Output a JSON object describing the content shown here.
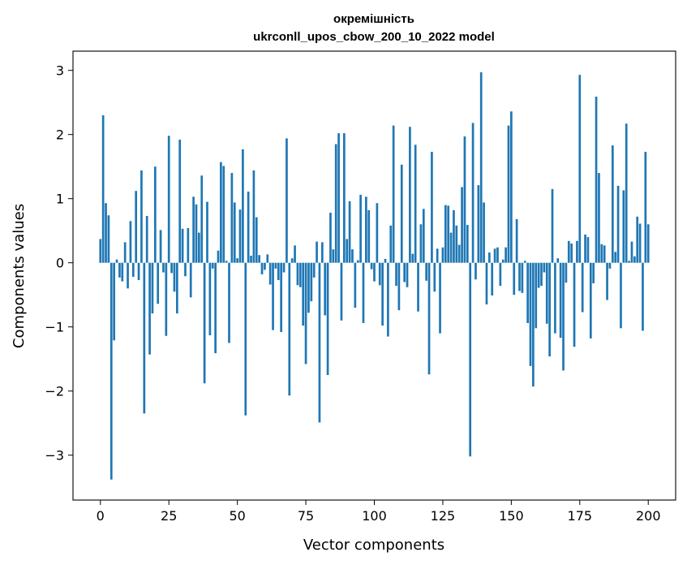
{
  "chart_data": {
    "type": "bar",
    "title_line1": "окремішність",
    "title_line2": "ukrconll_upos_cbow_200_10_2022 model",
    "xlabel": "Vector components",
    "ylabel": "Components values",
    "xlim": [
      -10,
      210
    ],
    "ylim": [
      -3.7,
      3.3
    ],
    "xticks": [
      0,
      25,
      50,
      75,
      100,
      125,
      150,
      175,
      200
    ],
    "yticks": [
      -3,
      -2,
      -1,
      0,
      1,
      2,
      3
    ],
    "ytick_labels": [
      "−3",
      "−2",
      "−1",
      "0",
      "1",
      "2",
      "3"
    ],
    "bar_color": "#1f77b4",
    "values": [
      0.37,
      2.3,
      0.93,
      0.74,
      -3.38,
      -1.21,
      0.05,
      -0.23,
      -0.29,
      0.32,
      -0.4,
      0.65,
      -0.22,
      1.12,
      -0.27,
      1.44,
      -2.35,
      0.73,
      -1.43,
      -0.79,
      1.5,
      -0.64,
      0.51,
      -0.15,
      -1.14,
      1.98,
      -0.16,
      -0.45,
      -0.79,
      1.92,
      0.53,
      -0.21,
      0.54,
      -0.54,
      1.03,
      0.91,
      0.47,
      1.36,
      -1.88,
      0.95,
      -1.13,
      -0.09,
      -1.41,
      0.19,
      1.57,
      1.51,
      0.03,
      -1.25,
      1.4,
      0.94,
      0.07,
      0.83,
      1.77,
      -2.38,
      1.11,
      0.11,
      1.44,
      0.71,
      0.12,
      -0.18,
      -0.11,
      0.13,
      -0.34,
      -1.05,
      -0.09,
      -0.27,
      -1.08,
      -0.15,
      1.94,
      -2.07,
      0.07,
      0.27,
      -0.35,
      -0.38,
      -0.98,
      -1.58,
      -0.78,
      -0.6,
      -0.23,
      0.33,
      -2.49,
      0.32,
      -0.82,
      -1.75,
      0.78,
      0.21,
      1.85,
      2.02,
      -0.9,
      2.02,
      0.37,
      0.96,
      0.21,
      -0.7,
      0.04,
      1.06,
      -0.94,
      1.03,
      0.82,
      -0.1,
      -0.29,
      0.93,
      -0.35,
      -0.98,
      0.06,
      -1.15,
      0.58,
      2.14,
      -0.36,
      -0.74,
      1.53,
      -0.3,
      -0.38,
      2.12,
      0.14,
      1.84,
      -0.76,
      0.6,
      0.84,
      -0.28,
      -1.74,
      1.73,
      -0.45,
      0.22,
      -1.1,
      0.24,
      0.9,
      0.89,
      0.47,
      0.82,
      0.58,
      0.28,
      1.18,
      1.97,
      0.59,
      -3.02,
      2.18,
      -0.26,
      1.21,
      2.97,
      0.94,
      -0.65,
      0.16,
      -0.51,
      0.22,
      0.24,
      -0.36,
      0.05,
      0.24,
      2.14,
      2.36,
      -0.5,
      0.68,
      -0.44,
      -0.47,
      0.03,
      -0.94,
      -1.61,
      -1.93,
      -1.02,
      -0.39,
      -0.36,
      -0.15,
      -0.95,
      -1.46,
      1.15,
      -1.1,
      0.07,
      -1.17,
      -1.68,
      -0.31,
      0.34,
      0.3,
      -1.31,
      0.34,
      2.93,
      -0.77,
      0.44,
      0.4,
      -1.18,
      -0.32,
      2.59,
      1.4,
      0.29,
      0.27,
      -0.58,
      -0.09,
      1.83,
      0.17,
      1.2,
      -1.02,
      1.13,
      2.17,
      0.03,
      0.33,
      0.1,
      0.72,
      0.61,
      -1.06,
      1.73,
      0.6
    ]
  }
}
